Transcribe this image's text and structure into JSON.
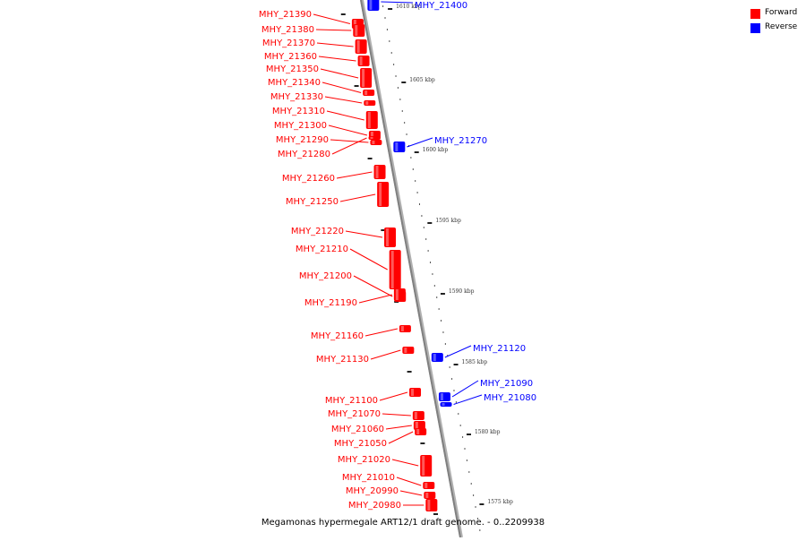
{
  "caption": "Megamonas hypermegale ART12/1 draft genome. - 0..2209938",
  "legend": [
    {
      "label": "Forward",
      "color": "#ff0000"
    },
    {
      "label": "Reverse",
      "color": "#0000ff"
    }
  ],
  "colors": {
    "forward": "#ff0000",
    "reverse": "#0000ff",
    "backbone": "#808080"
  },
  "ticks": [
    "1610 kbp",
    "1605 kbp",
    "1600 kbp",
    "1595 kbp",
    "1590 kbp",
    "1585 kbp",
    "1580 kbp",
    "1575 kbp"
  ],
  "genes": [
    {
      "label": "MHY_21400",
      "strand": "reverse"
    },
    {
      "label": "MHY_21390",
      "strand": "forward"
    },
    {
      "label": "MHY_21380",
      "strand": "forward"
    },
    {
      "label": "MHY_21370",
      "strand": "forward"
    },
    {
      "label": "MHY_21360",
      "strand": "forward"
    },
    {
      "label": "MHY_21350",
      "strand": "forward"
    },
    {
      "label": "MHY_21340",
      "strand": "forward"
    },
    {
      "label": "MHY_21330",
      "strand": "forward"
    },
    {
      "label": "MHY_21310",
      "strand": "forward"
    },
    {
      "label": "MHY_21300",
      "strand": "forward"
    },
    {
      "label": "MHY_21290",
      "strand": "forward"
    },
    {
      "label": "MHY_21280",
      "strand": "forward"
    },
    {
      "label": "MHY_21270",
      "strand": "reverse"
    },
    {
      "label": "MHY_21260",
      "strand": "forward"
    },
    {
      "label": "MHY_21250",
      "strand": "forward"
    },
    {
      "label": "MHY_21220",
      "strand": "forward"
    },
    {
      "label": "MHY_21210",
      "strand": "forward"
    },
    {
      "label": "MHY_21200",
      "strand": "forward"
    },
    {
      "label": "MHY_21190",
      "strand": "forward"
    },
    {
      "label": "MHY_21160",
      "strand": "forward"
    },
    {
      "label": "MHY_21130",
      "strand": "forward"
    },
    {
      "label": "MHY_21120",
      "strand": "reverse"
    },
    {
      "label": "MHY_21100",
      "strand": "forward"
    },
    {
      "label": "MHY_21090",
      "strand": "reverse"
    },
    {
      "label": "MHY_21080",
      "strand": "reverse"
    },
    {
      "label": "MHY_21070",
      "strand": "forward"
    },
    {
      "label": "MHY_21060",
      "strand": "forward"
    },
    {
      "label": "MHY_21050",
      "strand": "forward"
    },
    {
      "label": "MHY_21020",
      "strand": "forward"
    },
    {
      "label": "MHY_21010",
      "strand": "forward"
    },
    {
      "label": "MHY_20990",
      "strand": "forward"
    },
    {
      "label": "MHY_20980",
      "strand": "forward"
    }
  ]
}
